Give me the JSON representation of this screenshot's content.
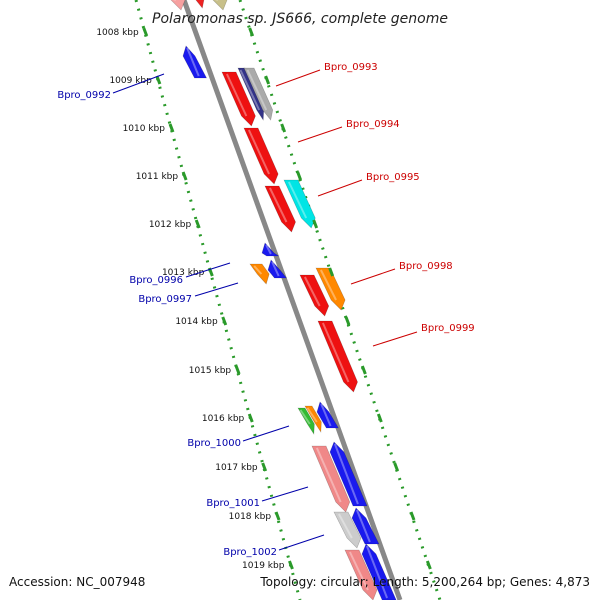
{
  "title": "Polaromonas sp. JS666, complete genome",
  "footer": {
    "accession": "Accession: NC_007948",
    "summary": "Topology: circular; Length: 5,200,264 bp; Genes: 4,873"
  },
  "colors": {
    "backbone": "#888888",
    "tick_ring": "#2a9a2a",
    "label_forward": "#cc0000",
    "label_reverse": "#0000aa"
  },
  "ticks": [
    "1008 kbp",
    "1009 kbp",
    "1010 kbp",
    "1011 kbp",
    "1012 kbp",
    "1013 kbp",
    "1014 kbp",
    "1015 kbp",
    "1016 kbp",
    "1017 kbp",
    "1018 kbp",
    "1019 kbp"
  ],
  "labels_forward": [
    "Bpro_0993",
    "Bpro_0994",
    "Bpro_0995",
    "Bpro_0998",
    "Bpro_0999"
  ],
  "labels_reverse": [
    "Bpro_0992",
    "Bpro_0996",
    "Bpro_0997",
    "Bpro_1000",
    "Bpro_1001",
    "Bpro_1002"
  ]
}
